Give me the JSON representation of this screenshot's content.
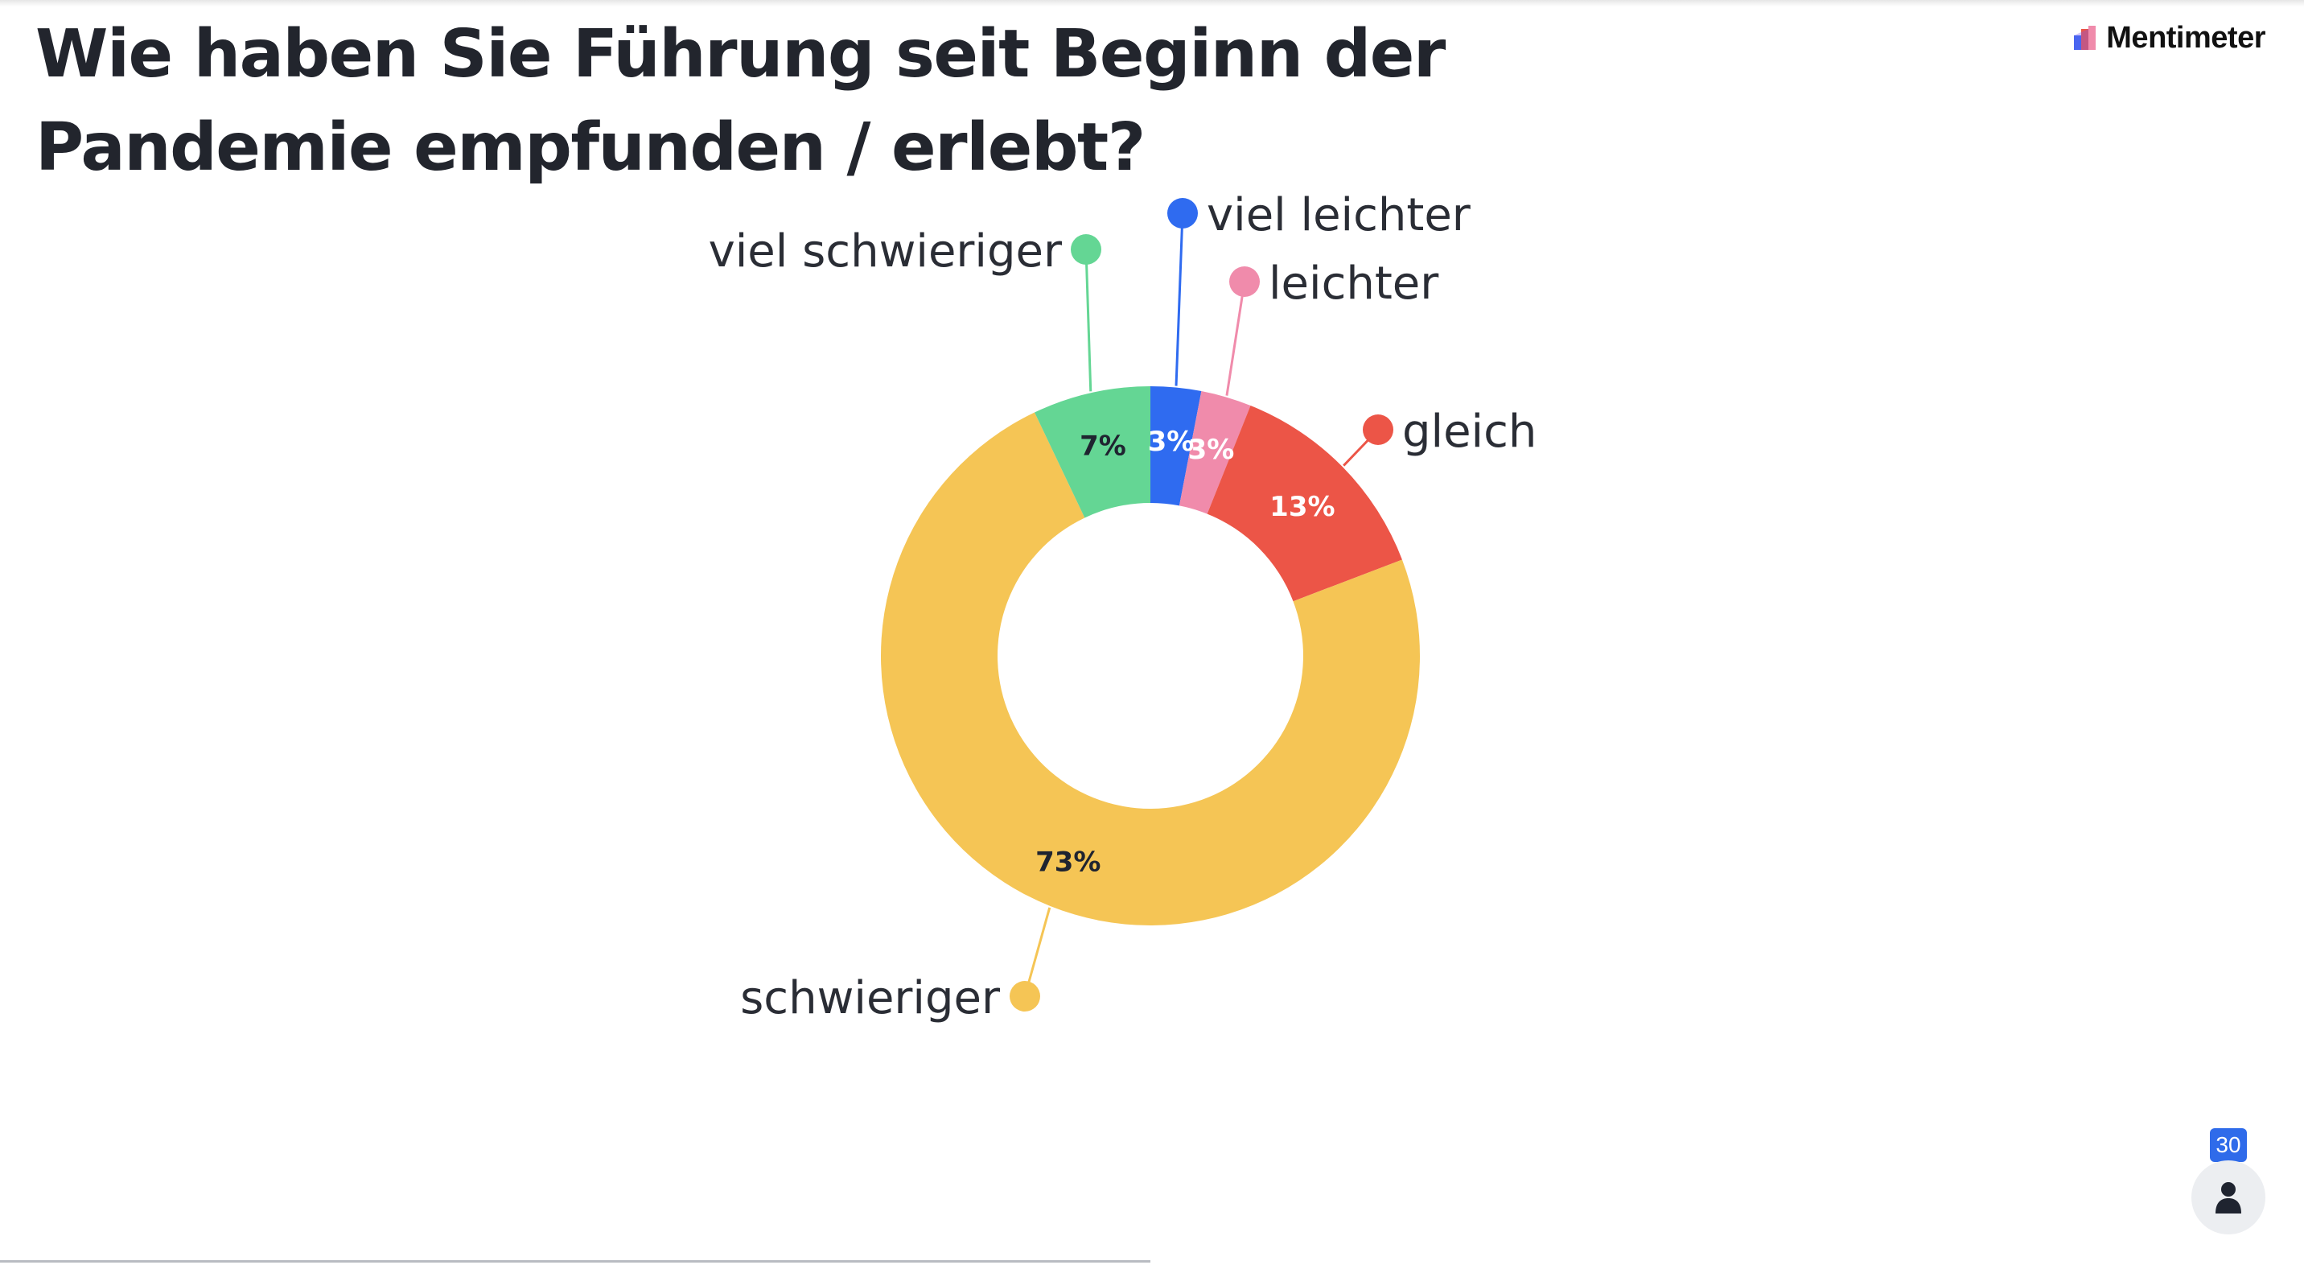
{
  "title": "Wie haben Sie Führung seit Beginn der Pandemie empfunden / erlebt?",
  "brand": {
    "name": "Mentimeter",
    "icon": "mentimeter-logo-icon"
  },
  "participants": {
    "count": "30",
    "icon": "person-icon"
  },
  "chart_data": {
    "type": "pie",
    "variant": "donut",
    "title": "",
    "start": "top",
    "direction": "clockwise",
    "series": [
      {
        "name": "viel leichter",
        "value": 3,
        "label": "3%",
        "color": "#2f6bf0",
        "label_color": "#ffffff"
      },
      {
        "name": "leichter",
        "value": 3,
        "label": "3%",
        "color": "#f08bab",
        "label_color": "#ffffff"
      },
      {
        "name": "gleich",
        "value": 13,
        "label": "13%",
        "color": "#ec5547",
        "label_color": "#ffffff"
      },
      {
        "name": "schwieriger",
        "value": 73,
        "label": "73%",
        "color": "#f5c555",
        "label_color": "#1f2430"
      },
      {
        "name": "viel schwieriger",
        "value": 7,
        "label": "7%",
        "color": "#64d694",
        "label_color": "#1f2430"
      }
    ]
  }
}
